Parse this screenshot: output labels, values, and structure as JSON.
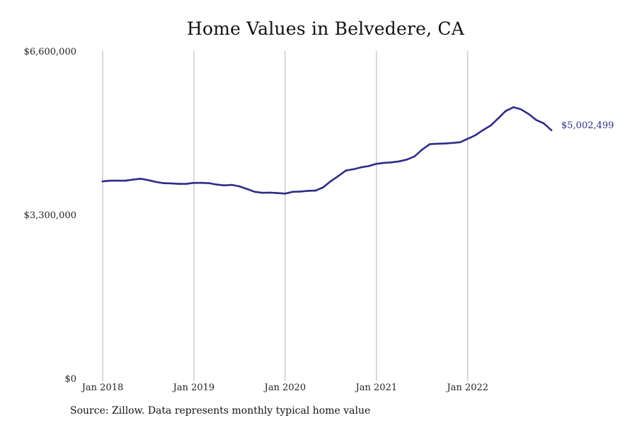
{
  "chart_data": {
    "type": "line",
    "title": "Home Values in Belvedere, CA",
    "xlabel": "",
    "ylabel": "",
    "ylim": [
      0,
      6600000
    ],
    "x_range": [
      "2018-01",
      "2022-12"
    ],
    "grid": {
      "vertical": true,
      "horizontal": false
    },
    "y_ticks": [
      {
        "value": 0,
        "label": "$0"
      },
      {
        "value": 3300000,
        "label": "$3,300,000"
      },
      {
        "value": 6600000,
        "label": "$6,600,000"
      }
    ],
    "x_ticks": [
      {
        "date": "2018-01",
        "label": "Jan 2018"
      },
      {
        "date": "2019-01",
        "label": "Jan 2019"
      },
      {
        "date": "2020-01",
        "label": "Jan 2020"
      },
      {
        "date": "2021-01",
        "label": "Jan 2021"
      },
      {
        "date": "2022-01",
        "label": "Jan 2022"
      }
    ],
    "series": [
      {
        "color": "#2e2d88",
        "end_label": "$5,002,499",
        "x": [
          "2018-01",
          "2018-02",
          "2018-03",
          "2018-04",
          "2018-05",
          "2018-06",
          "2018-07",
          "2018-08",
          "2018-09",
          "2018-10",
          "2018-11",
          "2018-12",
          "2019-01",
          "2019-02",
          "2019-03",
          "2019-04",
          "2019-05",
          "2019-06",
          "2019-07",
          "2019-08",
          "2019-09",
          "2019-10",
          "2019-11",
          "2019-12",
          "2020-01",
          "2020-02",
          "2020-03",
          "2020-04",
          "2020-05",
          "2020-06",
          "2020-07",
          "2020-08",
          "2020-09",
          "2020-10",
          "2020-11",
          "2020-12",
          "2021-01",
          "2021-02",
          "2021-03",
          "2021-04",
          "2021-05",
          "2021-06",
          "2021-07",
          "2021-08",
          "2021-09",
          "2021-10",
          "2021-11",
          "2021-12",
          "2022-01",
          "2022-02",
          "2022-03",
          "2022-04",
          "2022-05",
          "2022-06",
          "2022-07",
          "2022-08",
          "2022-09",
          "2022-10",
          "2022-11",
          "2022-12"
        ],
        "values": [
          3970000,
          3985000,
          3985000,
          3985000,
          4005000,
          4025000,
          3995000,
          3960000,
          3935000,
          3930000,
          3920000,
          3920000,
          3940000,
          3940000,
          3935000,
          3905000,
          3890000,
          3900000,
          3870000,
          3815000,
          3760000,
          3740000,
          3745000,
          3735000,
          3725000,
          3760000,
          3765000,
          3780000,
          3785000,
          3850000,
          3975000,
          4080000,
          4190000,
          4215000,
          4255000,
          4280000,
          4325000,
          4345000,
          4355000,
          4375000,
          4410000,
          4475000,
          4610000,
          4720000,
          4730000,
          4735000,
          4745000,
          4760000,
          4830000,
          4900000,
          5005000,
          5095000,
          5240000,
          5390000,
          5465000,
          5425000,
          5330000,
          5210000,
          5140000,
          5002499
        ]
      }
    ]
  },
  "footer": {
    "source": "Source: Zillow. Data represents monthly typical home value"
  }
}
